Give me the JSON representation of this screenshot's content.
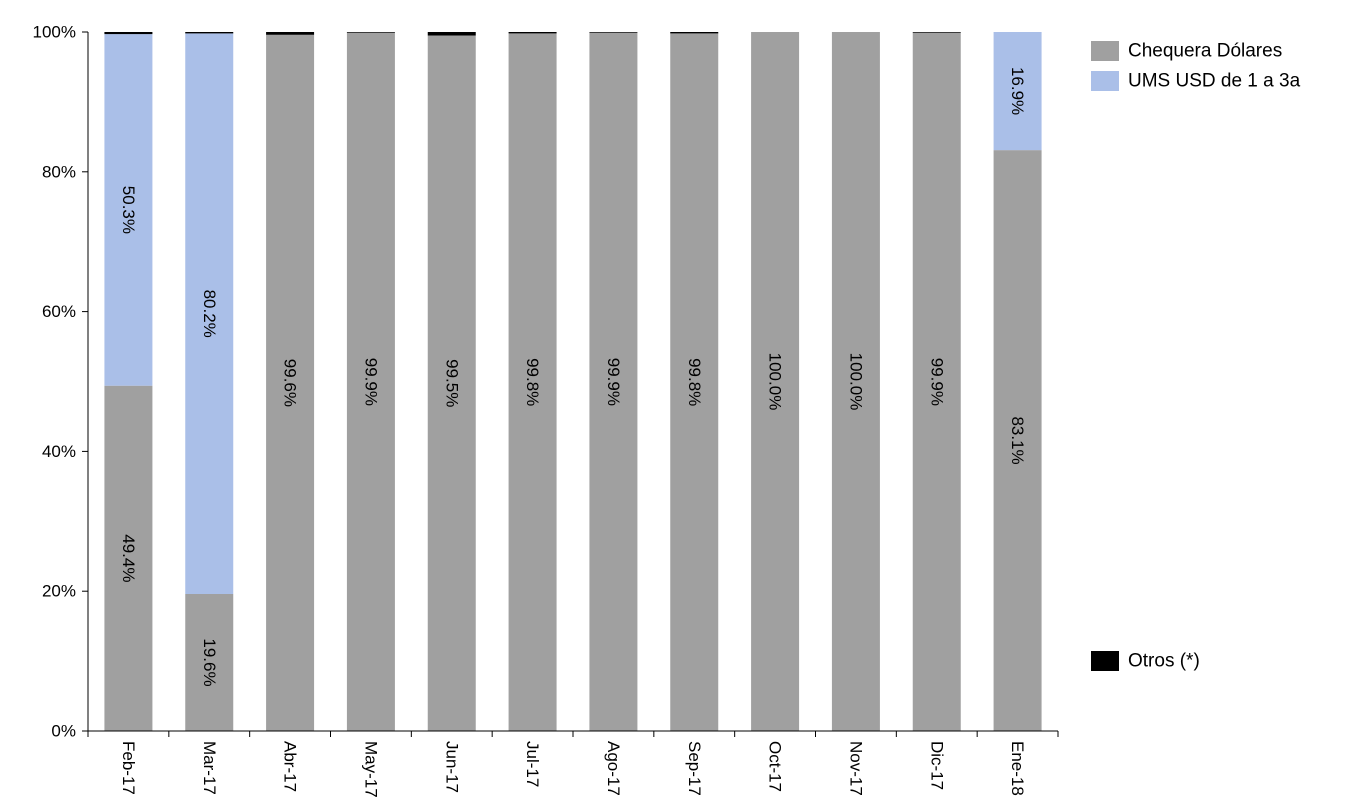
{
  "chart_data": {
    "type": "bar",
    "stacked": true,
    "percent_stacked": true,
    "categories": [
      "Feb-17",
      "Mar-17",
      "Abr-17",
      "May-17",
      "Jun-17",
      "Jul-17",
      "Ago-17",
      "Sep-17",
      "Oct-17",
      "Nov-17",
      "Dic-17",
      "Ene-18"
    ],
    "series": [
      {
        "name": "Chequera Dólares",
        "color": "#a0a0a0",
        "values": [
          49.4,
          19.6,
          99.6,
          99.9,
          99.5,
          99.8,
          99.9,
          99.8,
          100.0,
          100.0,
          99.9,
          83.1
        ],
        "labels": [
          "49.4%",
          "19.6%",
          "99.6%",
          "99.9%",
          "99.5%",
          "99.8%",
          "99.9%",
          "99.8%",
          "100.0%",
          "100.0%",
          "99.9%",
          "83.1%"
        ]
      },
      {
        "name": "UMS USD de 1 a 3a",
        "color": "#aabfe8",
        "values": [
          50.3,
          80.2,
          0.0,
          0.0,
          0.0,
          0.0,
          0.0,
          0.0,
          0.0,
          0.0,
          0.0,
          16.9
        ],
        "labels": [
          "50.3%",
          "80.2%",
          "",
          "",
          "",
          "",
          "",
          "",
          "",
          "",
          "",
          "16.9%"
        ]
      },
      {
        "name": "Otros (*)",
        "color": "#000000",
        "values": [
          0.3,
          0.2,
          0.4,
          0.1,
          0.5,
          0.2,
          0.1,
          0.2,
          0.0,
          0.0,
          0.1,
          0.0
        ],
        "labels": [
          "",
          "",
          "",
          "",
          "",
          "",
          "",
          "",
          "",
          "",
          "",
          ""
        ]
      }
    ],
    "yticks": [
      "0%",
      "20%",
      "40%",
      "60%",
      "80%",
      "100%"
    ],
    "ylim": [
      0,
      100
    ],
    "title": "",
    "xlabel": "",
    "ylabel": "",
    "grid": false,
    "legend": "right"
  }
}
